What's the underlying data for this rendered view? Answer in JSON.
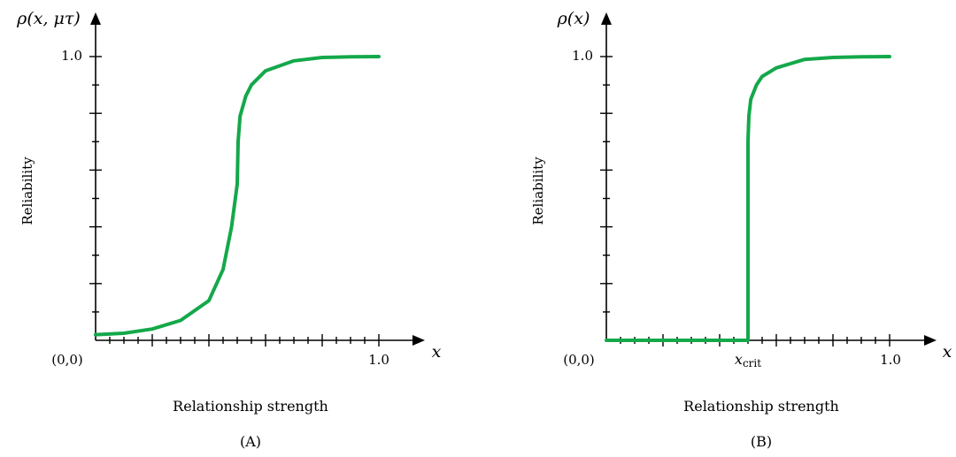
{
  "chart_data": [
    {
      "type": "line",
      "panel_label": "(A)",
      "y_axis_symbol": "ρ(x, μτ)",
      "ylabel": "Reliability",
      "xlabel": "Relationship strength",
      "x_axis_symbol": "x",
      "origin_label": "(0,0)",
      "x_tick_label": "1.0",
      "y_tick_label": "1.0",
      "xlim": [
        0,
        1.0
      ],
      "ylim": [
        0,
        1.0
      ],
      "series_color": "#14a84a",
      "x": [
        0.0,
        0.1,
        0.2,
        0.3,
        0.4,
        0.45,
        0.48,
        0.5,
        0.503,
        0.51,
        0.53,
        0.55,
        0.6,
        0.7,
        0.8,
        0.9,
        1.0
      ],
      "y": [
        0.02,
        0.025,
        0.04,
        0.07,
        0.14,
        0.25,
        0.4,
        0.55,
        0.7,
        0.79,
        0.86,
        0.9,
        0.95,
        0.985,
        0.997,
        0.999,
        1.0
      ]
    },
    {
      "type": "line",
      "panel_label": "(B)",
      "y_axis_symbol": "ρ(x)",
      "ylabel": "Reliability",
      "xlabel": "Relationship strength",
      "x_axis_symbol": "x",
      "origin_label": "(0,0)",
      "x_tick_label": "1.0",
      "y_tick_label": "1.0",
      "x_crit_label_main": "x",
      "x_crit_label_sub": "crit",
      "x_crit": 0.5,
      "xlim": [
        0,
        1.0
      ],
      "ylim": [
        0,
        1.0
      ],
      "series_color": "#14a84a",
      "x": [
        0.0,
        0.5,
        0.5,
        0.503,
        0.51,
        0.53,
        0.55,
        0.6,
        0.7,
        0.8,
        0.9,
        1.0
      ],
      "y": [
        0.0,
        0.0,
        0.7,
        0.79,
        0.85,
        0.9,
        0.93,
        0.96,
        0.99,
        0.997,
        0.999,
        1.0
      ]
    }
  ]
}
